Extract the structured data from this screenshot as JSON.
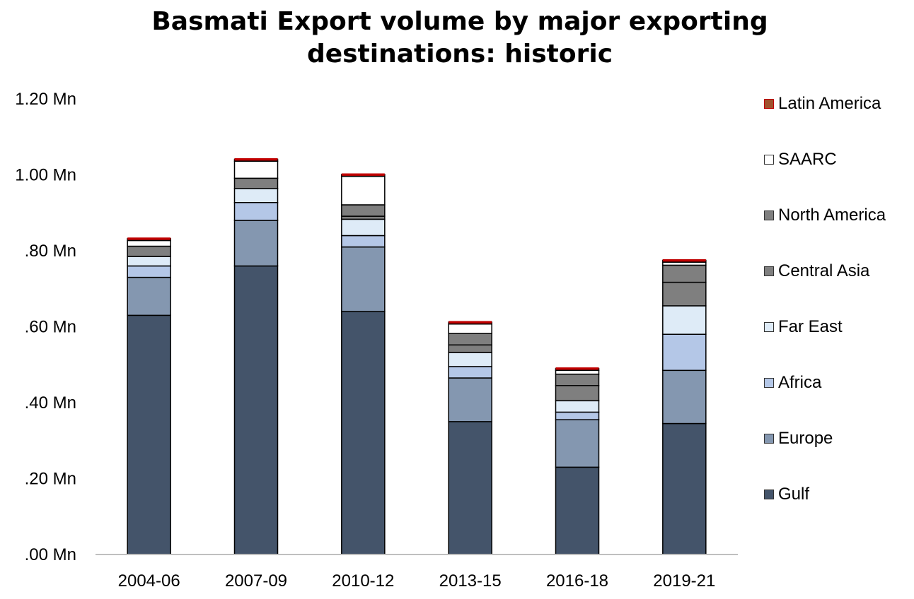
{
  "chart_data": {
    "type": "bar",
    "stacked": true,
    "title_lines": [
      "Basmati Export volume by major exporting",
      "destinations: historic"
    ],
    "categories": [
      "2004-06",
      "2007-09",
      "2010-12",
      "2013-15",
      "2016-18",
      "2019-21"
    ],
    "y_tick_labels": [
      ".00 Mn",
      ".20 Mn",
      ".40 Mn",
      ".60 Mn",
      ".80 Mn",
      "1.00 Mn",
      "1.20 Mn"
    ],
    "y_ticks": [
      0,
      0.2,
      0.4,
      0.6,
      0.8,
      1.0,
      1.2
    ],
    "ylim": [
      0,
      1.2
    ],
    "grid": false,
    "legend_position": "right",
    "series": [
      {
        "name": "Gulf",
        "color": "#44546a",
        "values": [
          0.63,
          0.76,
          0.64,
          0.35,
          0.23,
          0.345
        ]
      },
      {
        "name": "Europe",
        "color": "#8497b0",
        "values": [
          0.1,
          0.12,
          0.17,
          0.115,
          0.125,
          0.14
        ]
      },
      {
        "name": "Africa",
        "color": "#b4c7e7",
        "values": [
          0.03,
          0.047,
          0.03,
          0.03,
          0.02,
          0.095
        ]
      },
      {
        "name": "Far East",
        "color": "#deebf7",
        "values": [
          0.025,
          0.037,
          0.043,
          0.037,
          0.03,
          0.075
        ]
      },
      {
        "name": "Central Asia",
        "color": "#7f7f7f",
        "values": [
          0.0,
          0.0,
          0.008,
          0.02,
          0.04,
          0.062
        ]
      },
      {
        "name": "North America",
        "color": "#7f7f7f",
        "values": [
          0.027,
          0.027,
          0.03,
          0.03,
          0.03,
          0.045
        ]
      },
      {
        "name": "SAARC",
        "color": "#ffffff",
        "values": [
          0.015,
          0.045,
          0.075,
          0.025,
          0.01,
          0.008
        ]
      },
      {
        "name": "Latin America",
        "color": "#c00000",
        "values": [
          0.005,
          0.005,
          0.005,
          0.005,
          0.005,
          0.005
        ]
      }
    ],
    "legend": [
      "Latin America",
      "SAARC",
      "North America",
      "Central Asia",
      "Far East",
      "Africa",
      "Europe",
      "Gulf"
    ]
  }
}
